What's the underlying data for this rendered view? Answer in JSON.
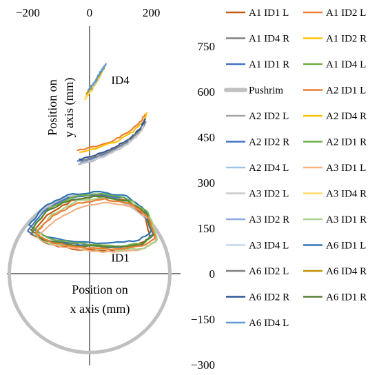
{
  "chart_data": {
    "type": "scatter",
    "xlabel": "Position on x axis (mm)",
    "ylabel": "Position on y axis (mm)",
    "x_ticks": [
      "−200",
      "0",
      "200"
    ],
    "y_ticks": [
      "750",
      "600",
      "450",
      "300",
      "150",
      "0",
      "−150",
      "−300"
    ],
    "xlim": [
      -230,
      240
    ],
    "ylim": [
      -300,
      750
    ],
    "grid": false,
    "legend_position": "right",
    "annotations": [
      {
        "text": "ID4",
        "x": 70,
        "y": 625
      },
      {
        "text": "ID1",
        "x": 70,
        "y": 40
      }
    ],
    "pushrim": {
      "name": "Pushrim",
      "cx": 0,
      "cy": 0,
      "r": 260,
      "color": "#c0c0c0"
    },
    "series": [
      {
        "name": "A1 ID1 L",
        "color": "#c55a11"
      },
      {
        "name": "A1 ID2 L",
        "color": "#ed7d31"
      },
      {
        "name": "A1 ID4 R",
        "color": "#7f7f7f"
      },
      {
        "name": "A1 ID2 R",
        "color": "#ffc000"
      },
      {
        "name": "A1 ID1 R",
        "color": "#4472c4"
      },
      {
        "name": "A1 ID4 L",
        "color": "#70ad47"
      },
      {
        "name": "Pushrim",
        "color": "#c0c0c0"
      },
      {
        "name": "A2 ID1 L",
        "color": "#ed7d31"
      },
      {
        "name": "A2 ID2 L",
        "color": "#a5a5a5"
      },
      {
        "name": "A2 ID4 R",
        "color": "#ffc000"
      },
      {
        "name": "A2 ID2 R",
        "color": "#4472c4"
      },
      {
        "name": "A2 ID1 R",
        "color": "#70ad47"
      },
      {
        "name": "A2 ID4 L",
        "color": "#9dc3e6"
      },
      {
        "name": "A3 ID1 L",
        "color": "#f4b183"
      },
      {
        "name": "A3 ID2 L",
        "color": "#c9c9c9"
      },
      {
        "name": "A3 ID4 R",
        "color": "#ffd966"
      },
      {
        "name": "A3 ID2 R",
        "color": "#8faadc"
      },
      {
        "name": "A3 ID1 R",
        "color": "#a9d18e"
      },
      {
        "name": "A3 ID4 L",
        "color": "#bdd7ee"
      },
      {
        "name": "A6 ID1 L",
        "color": "#2e75b6"
      },
      {
        "name": "A6 ID2 L",
        "color": "#7f7f7f"
      },
      {
        "name": "A6 ID4 R",
        "color": "#bf9000"
      },
      {
        "name": "A6 ID2 R",
        "color": "#2f5597"
      },
      {
        "name": "A6 ID1 R",
        "color": "#548235"
      },
      {
        "name": "A6 ID4 L",
        "color": "#5b9bd5"
      }
    ],
    "trajectories": [
      {
        "series": "A1 ID1 L",
        "cluster": "ID1",
        "points": [
          [
            -190,
            130
          ],
          [
            -140,
            190
          ],
          [
            -60,
            240
          ],
          [
            30,
            258
          ],
          [
            120,
            240
          ],
          [
            180,
            190
          ],
          [
            195,
            120
          ],
          [
            150,
            90
          ],
          [
            60,
            75
          ],
          [
            -40,
            80
          ],
          [
            -130,
            95
          ],
          [
            -190,
            130
          ]
        ]
      },
      {
        "series": "A1 ID1 R",
        "cluster": "ID1",
        "points": [
          [
            -200,
            140
          ],
          [
            -150,
            205
          ],
          [
            -70,
            250
          ],
          [
            20,
            262
          ],
          [
            110,
            250
          ],
          [
            175,
            200
          ],
          [
            205,
            130
          ],
          [
            170,
            95
          ],
          [
            80,
            85
          ],
          [
            -30,
            95
          ],
          [
            -140,
            110
          ],
          [
            -200,
            140
          ]
        ]
      },
      {
        "series": "A6 ID1 L",
        "cluster": "ID1",
        "points": [
          [
            -195,
            160
          ],
          [
            -150,
            220
          ],
          [
            -70,
            260
          ],
          [
            30,
            270
          ],
          [
            120,
            255
          ],
          [
            180,
            210
          ],
          [
            200,
            140
          ],
          [
            160,
            110
          ],
          [
            60,
            100
          ],
          [
            -50,
            105
          ],
          [
            -150,
            125
          ],
          [
            -195,
            160
          ]
        ]
      },
      {
        "series": "A2 ID1 R",
        "cluster": "ID1",
        "points": [
          [
            -185,
            150
          ],
          [
            -130,
            215
          ],
          [
            -50,
            255
          ],
          [
            40,
            265
          ],
          [
            130,
            245
          ],
          [
            190,
            200
          ],
          [
            210,
            130
          ],
          [
            175,
            100
          ],
          [
            90,
            90
          ],
          [
            -20,
            98
          ],
          [
            -130,
            115
          ],
          [
            -185,
            150
          ]
        ]
      },
      {
        "series": "A3 ID1 L",
        "cluster": "ID1",
        "points": [
          [
            -170,
            120
          ],
          [
            -110,
            175
          ],
          [
            -30,
            220
          ],
          [
            60,
            235
          ],
          [
            150,
            220
          ],
          [
            200,
            170
          ],
          [
            215,
            105
          ],
          [
            170,
            80
          ],
          [
            80,
            70
          ],
          [
            -30,
            78
          ],
          [
            -120,
            95
          ],
          [
            -170,
            120
          ]
        ]
      },
      {
        "series": "A3 ID1 R",
        "cluster": "ID1",
        "points": [
          [
            -180,
            130
          ],
          [
            -120,
            195
          ],
          [
            -40,
            240
          ],
          [
            50,
            250
          ],
          [
            140,
            235
          ],
          [
            200,
            180
          ],
          [
            220,
            110
          ],
          [
            180,
            85
          ],
          [
            90,
            78
          ],
          [
            -20,
            85
          ],
          [
            -130,
            100
          ],
          [
            -180,
            130
          ]
        ]
      },
      {
        "series": "A6 ID1 R",
        "cluster": "ID1",
        "points": [
          [
            -190,
            145
          ],
          [
            -140,
            205
          ],
          [
            -60,
            245
          ],
          [
            30,
            255
          ],
          [
            125,
            240
          ],
          [
            185,
            195
          ],
          [
            205,
            125
          ],
          [
            165,
            95
          ],
          [
            75,
            88
          ],
          [
            -35,
            92
          ],
          [
            -145,
            108
          ],
          [
            -190,
            145
          ]
        ]
      },
      {
        "series": "A2 ID1 L",
        "cluster": "ID1",
        "points": [
          [
            -175,
            135
          ],
          [
            -120,
            190
          ],
          [
            -40,
            232
          ],
          [
            50,
            245
          ],
          [
            140,
            228
          ],
          [
            195,
            180
          ],
          [
            212,
            118
          ],
          [
            172,
            90
          ],
          [
            82,
            80
          ],
          [
            -25,
            86
          ],
          [
            -125,
            102
          ],
          [
            -175,
            135
          ]
        ]
      },
      {
        "series": "A1 ID2 L",
        "cluster": "ID2",
        "points": [
          [
            -40,
            405
          ],
          [
            20,
            420
          ],
          [
            80,
            440
          ],
          [
            130,
            470
          ],
          [
            170,
            505
          ],
          [
            180,
            525
          ]
        ]
      },
      {
        "series": "A1 ID2 R",
        "cluster": "ID2",
        "points": [
          [
            -30,
            400
          ],
          [
            30,
            415
          ],
          [
            90,
            438
          ],
          [
            140,
            468
          ],
          [
            175,
            500
          ],
          [
            185,
            530
          ]
        ]
      },
      {
        "series": "A2 ID2 L",
        "cluster": "ID2",
        "points": [
          [
            -35,
            360
          ],
          [
            10,
            372
          ],
          [
            60,
            395
          ],
          [
            110,
            425
          ],
          [
            150,
            460
          ],
          [
            175,
            490
          ]
        ]
      },
      {
        "series": "A2 ID2 R",
        "cluster": "ID2",
        "points": [
          [
            -40,
            370
          ],
          [
            15,
            382
          ],
          [
            70,
            405
          ],
          [
            120,
            435
          ],
          [
            160,
            470
          ],
          [
            178,
            505
          ]
        ]
      },
      {
        "series": "A3 ID2 R",
        "cluster": "ID2",
        "points": [
          [
            -30,
            365
          ],
          [
            20,
            378
          ],
          [
            75,
            400
          ],
          [
            125,
            430
          ],
          [
            162,
            462
          ],
          [
            180,
            495
          ]
        ]
      },
      {
        "series": "A6 ID2 R",
        "cluster": "ID2",
        "points": [
          [
            -35,
            375
          ],
          [
            20,
            390
          ],
          [
            75,
            412
          ],
          [
            125,
            442
          ],
          [
            165,
            478
          ],
          [
            180,
            510
          ]
        ]
      },
      {
        "series": "A6 ID2 L",
        "cluster": "ID2",
        "points": [
          [
            -25,
            372
          ],
          [
            25,
            388
          ],
          [
            80,
            410
          ],
          [
            128,
            440
          ],
          [
            166,
            472
          ],
          [
            182,
            500
          ]
        ]
      },
      {
        "series": "A3 ID2 L",
        "cluster": "ID2",
        "points": [
          [
            -28,
            362
          ],
          [
            22,
            376
          ],
          [
            72,
            398
          ],
          [
            122,
            428
          ],
          [
            158,
            458
          ],
          [
            176,
            488
          ]
        ]
      },
      {
        "series": "A1 ID4 R",
        "cluster": "ID4",
        "points": [
          [
            -10,
            585
          ],
          [
            5,
            605
          ],
          [
            20,
            630
          ],
          [
            35,
            655
          ],
          [
            45,
            675
          ]
        ]
      },
      {
        "series": "A1 ID4 L",
        "cluster": "ID4",
        "points": [
          [
            -5,
            600
          ],
          [
            10,
            620
          ],
          [
            25,
            645
          ],
          [
            40,
            668
          ],
          [
            52,
            690
          ]
        ]
      },
      {
        "series": "A2 ID4 R",
        "cluster": "ID4",
        "points": [
          [
            -12,
            578
          ],
          [
            3,
            600
          ],
          [
            18,
            625
          ],
          [
            33,
            650
          ],
          [
            48,
            678
          ]
        ]
      },
      {
        "series": "A2 ID4 L",
        "cluster": "ID4",
        "points": [
          [
            -8,
            590
          ],
          [
            8,
            612
          ],
          [
            22,
            636
          ],
          [
            38,
            660
          ],
          [
            50,
            684
          ]
        ]
      },
      {
        "series": "A3 ID4 R",
        "cluster": "ID4",
        "points": [
          [
            -15,
            575
          ],
          [
            0,
            598
          ],
          [
            15,
            622
          ],
          [
            30,
            646
          ],
          [
            44,
            670
          ]
        ]
      },
      {
        "series": "A3 ID4 L",
        "cluster": "ID4",
        "points": [
          [
            -6,
            595
          ],
          [
            9,
            616
          ],
          [
            24,
            640
          ],
          [
            39,
            664
          ],
          [
            51,
            688
          ]
        ]
      },
      {
        "series": "A6 ID4 R",
        "cluster": "ID4",
        "points": [
          [
            -10,
            592
          ],
          [
            6,
            614
          ],
          [
            21,
            638
          ],
          [
            36,
            662
          ],
          [
            49,
            686
          ]
        ]
      },
      {
        "series": "A6 ID4 L",
        "cluster": "ID4",
        "points": [
          [
            -4,
            605
          ],
          [
            11,
            625
          ],
          [
            26,
            648
          ],
          [
            41,
            672
          ],
          [
            53,
            692
          ]
        ]
      }
    ]
  }
}
